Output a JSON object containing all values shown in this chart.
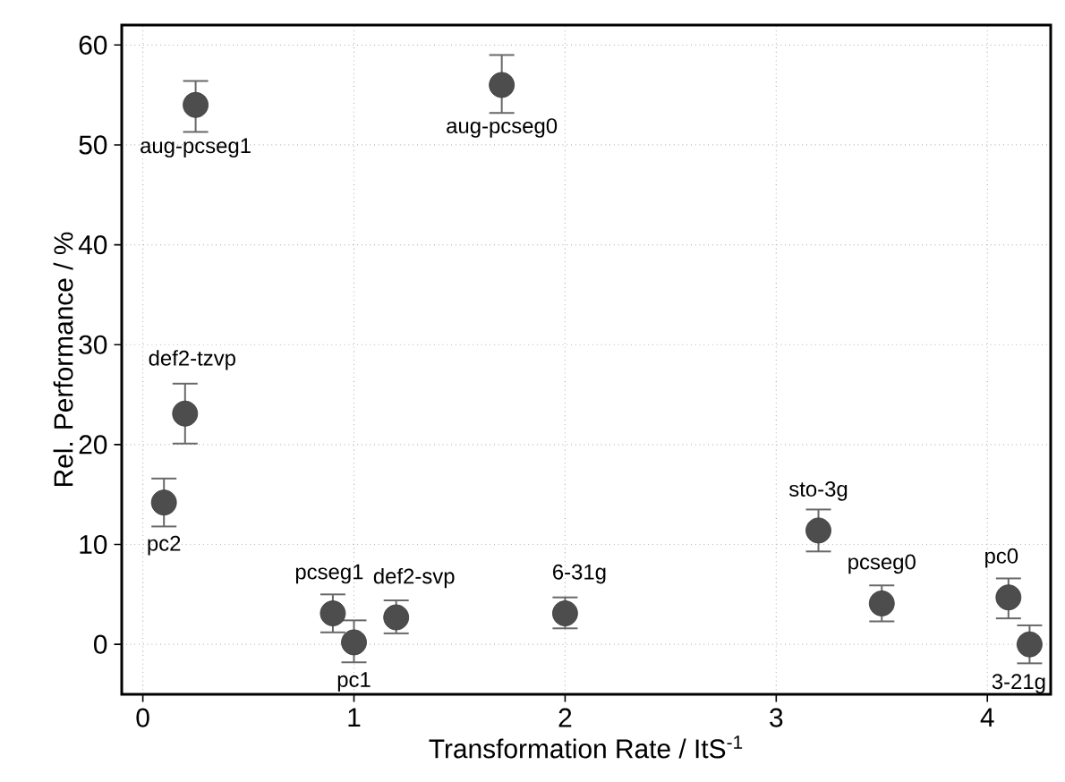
{
  "chart_data": {
    "type": "scatter",
    "xlabel": "Transformation Rate / ItS$^{-1}$",
    "ylabel": "Rel. Performance / %",
    "xlim": [
      -0.1,
      4.3
    ],
    "ylim": [
      -5,
      62
    ],
    "xticks": [
      0,
      1,
      2,
      3,
      4
    ],
    "yticks": [
      0,
      10,
      20,
      30,
      40,
      50,
      60
    ],
    "grid": true,
    "marker": "circle",
    "series": [
      {
        "color": "#4d4d4d",
        "x": [
          0.25,
          1.7,
          0.2,
          0.1,
          0.9,
          1.0,
          1.2,
          2.0,
          3.2,
          3.5,
          4.1,
          4.2
        ],
        "values": [
          54,
          56,
          23.1,
          14.2,
          3.1,
          0.2,
          2.7,
          3.1,
          11.4,
          4.1,
          4.7,
          0
        ],
        "errors": [
          [
            51.3,
            56.4
          ],
          [
            53.2,
            59
          ],
          [
            20.1,
            26.1
          ],
          [
            11.8,
            16.6
          ],
          [
            1.2,
            5.0
          ],
          [
            -1.8,
            2.4
          ],
          [
            1.1,
            4.4
          ],
          [
            1.6,
            4.7
          ],
          [
            9.3,
            13.5
          ],
          [
            2.3,
            5.9
          ],
          [
            2.6,
            6.6
          ],
          [
            -1.9,
            1.9
          ]
        ]
      }
    ],
    "annotations": [
      {
        "text": "aug-pcseg1",
        "x": 0.25,
        "y": 54
      },
      {
        "text": "aug-pcseg0",
        "x": 1.7,
        "y": 56
      },
      {
        "text": "def2-tzvp",
        "x": 0.2,
        "y": 23.1
      },
      {
        "text": "pc2",
        "x": 0.1,
        "y": 14.2
      },
      {
        "text": "pcseg1",
        "x": 0.9,
        "y": 3.1
      },
      {
        "text": "pc1",
        "x": 1.0,
        "y": 0.2
      },
      {
        "text": "def2-svp",
        "x": 1.2,
        "y": 2.7
      },
      {
        "text": "6-31g",
        "x": 2.0,
        "y": 3.1
      },
      {
        "text": "sto-3g",
        "x": 3.2,
        "y": 11.4
      },
      {
        "text": "pcseg0",
        "x": 3.5,
        "y": 4.1
      },
      {
        "text": "pc0",
        "x": 4.1,
        "y": 4.7
      },
      {
        "text": "3-21g",
        "x": 4.2,
        "y": 0
      }
    ]
  }
}
